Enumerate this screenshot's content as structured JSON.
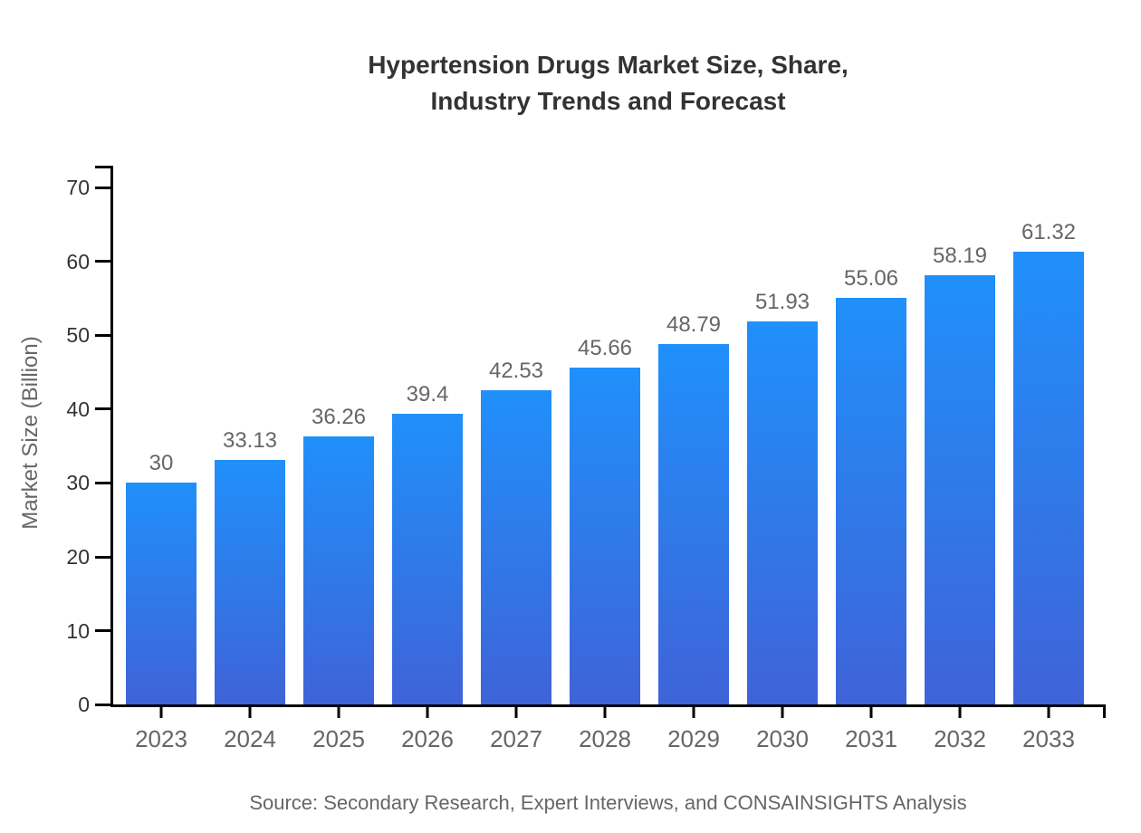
{
  "title": {
    "line1": "Hypertension Drugs Market Size, Share,",
    "line2": "Industry Trends and Forecast"
  },
  "source": "Source: Secondary Research, Expert Interviews, and CONSAINSIGHTS Analysis",
  "chart_data": {
    "type": "bar",
    "title": "Hypertension Drugs Market Size, Share, Industry Trends and Forecast",
    "xlabel": "",
    "ylabel": "Market Size (Billion)",
    "categories": [
      "2023",
      "2024",
      "2025",
      "2026",
      "2027",
      "2028",
      "2029",
      "2030",
      "2031",
      "2032",
      "2033"
    ],
    "values": [
      30,
      33.13,
      36.26,
      39.4,
      42.53,
      45.66,
      48.79,
      51.93,
      55.06,
      58.19,
      61.32
    ],
    "value_labels": [
      "30",
      "33.13",
      "36.26",
      "39.4",
      "42.53",
      "45.66",
      "48.79",
      "51.93",
      "55.06",
      "58.19",
      "61.32"
    ],
    "yticks": [
      0,
      10,
      20,
      30,
      40,
      50,
      60,
      70
    ],
    "ylim": [
      0,
      73
    ],
    "grid": false,
    "legend": "none",
    "colors": {
      "bar_gradient_top": "#2090fa",
      "bar_gradient_bottom": "#3f63d8",
      "axis": "#000000",
      "title_text": "#333333",
      "tick_text": "#333333",
      "category_text": "#666666",
      "value_label_text": "#666666",
      "source_text": "#666666"
    }
  }
}
